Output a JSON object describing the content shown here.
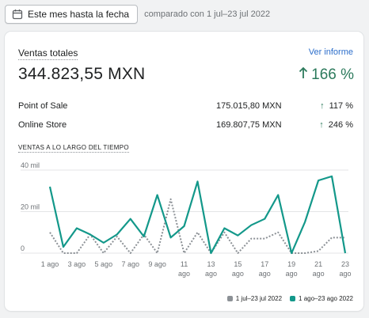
{
  "toolbar": {
    "date_button_label": "Este mes hasta la fecha",
    "compare_text": "comparado con 1 jul–23 jul 2022"
  },
  "card": {
    "title": "Ventas totales",
    "report_link": "Ver informe",
    "total": "344.823,55 MXN",
    "change": "166 %",
    "rows": [
      {
        "label": "Point of Sale",
        "amount": "175.015,80 MXN",
        "pct": "117 %"
      },
      {
        "label": "Online Store",
        "amount": "169.807,75 MXN",
        "pct": "246 %"
      }
    ],
    "chart_title": "VENTAS A LO LARGO DEL TIEMPO"
  },
  "colors": {
    "accent": "#2c7a5c",
    "link": "#2c6ecb",
    "current_series": "#13988a",
    "previous_series": "#8c9196"
  },
  "chart_data": {
    "type": "line",
    "y_tick_labels": [
      "0",
      "20 mil",
      "40 mil"
    ],
    "ylim": [
      0,
      40000
    ],
    "x_tick_labels": [
      [
        "1 ago"
      ],
      [
        "3 ago"
      ],
      [
        "5 ago"
      ],
      [
        "7 ago"
      ],
      [
        "9 ago"
      ],
      [
        "11",
        "ago"
      ],
      [
        "13",
        "ago"
      ],
      [
        "15",
        "ago"
      ],
      [
        "17",
        "ago"
      ],
      [
        "19",
        "ago"
      ],
      [
        "21",
        "ago"
      ],
      [
        "23",
        "ago"
      ]
    ],
    "x": [
      1,
      2,
      3,
      4,
      5,
      6,
      7,
      8,
      9,
      10,
      11,
      12,
      13,
      14,
      15,
      16,
      17,
      18,
      19,
      20,
      21,
      22,
      23
    ],
    "series": [
      {
        "name": "1 jul–23 jul 2022",
        "style": "dotted",
        "values": [
          10000,
          0,
          0,
          9000,
          0,
          8000,
          0,
          9000,
          0,
          26000,
          0,
          10000,
          0,
          10000,
          0,
          7000,
          7000,
          10000,
          0,
          0,
          1000,
          7500,
          7500
        ]
      },
      {
        "name": "1 ago–23 ago 2022",
        "style": "solid",
        "values": [
          32000,
          3000,
          12000,
          9000,
          5000,
          9000,
          16500,
          8000,
          28000,
          7500,
          13000,
          34500,
          0,
          12000,
          8500,
          13500,
          16500,
          28000,
          0,
          15000,
          35000,
          37000,
          0
        ]
      }
    ],
    "legend_position": "bottom-right",
    "grid": "horizontal"
  }
}
